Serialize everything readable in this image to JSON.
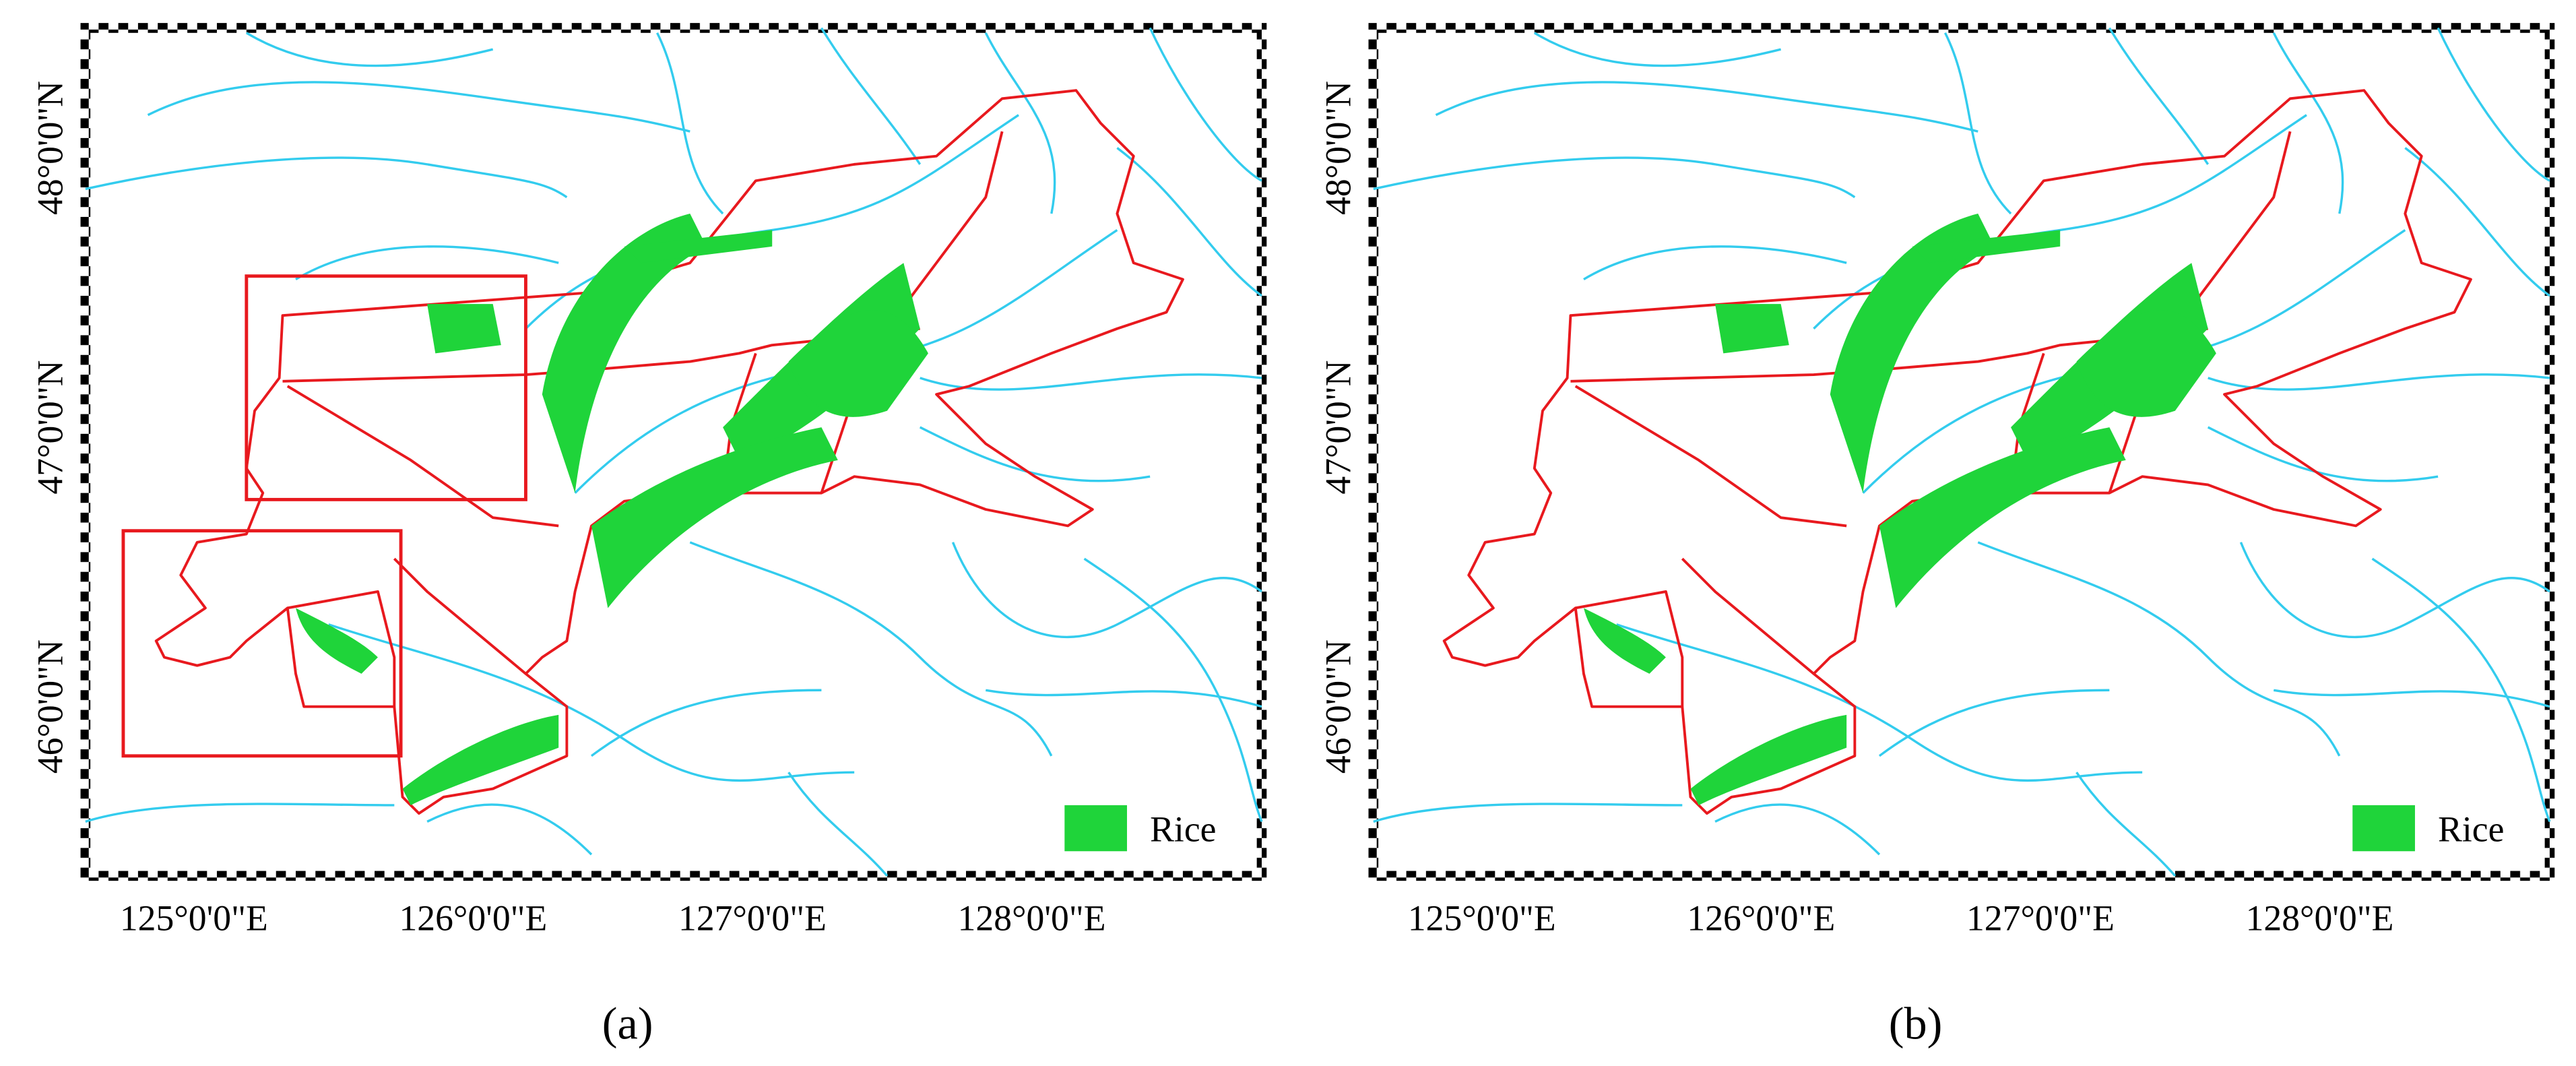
{
  "panels": [
    {
      "caption": "(a)",
      "legend": "Rice",
      "x_labels": [
        "125°0'0\"E",
        "126°0'0\"E",
        "127°0'0\"E",
        "128°0'0\"E"
      ],
      "y_labels": [
        "48°0'0\"N",
        "47°0'0\"N",
        "46°0'0\"N"
      ]
    },
    {
      "caption": "(b)",
      "legend": "Rice",
      "x_labels": [
        "125°0'0\"E",
        "126°0'0\"E",
        "127°0'0\"E",
        "128°0'0\"E"
      ],
      "y_labels": [
        "48°0'0\"N",
        "47°0'0\"N",
        "46°0'0\"N"
      ]
    }
  ]
}
